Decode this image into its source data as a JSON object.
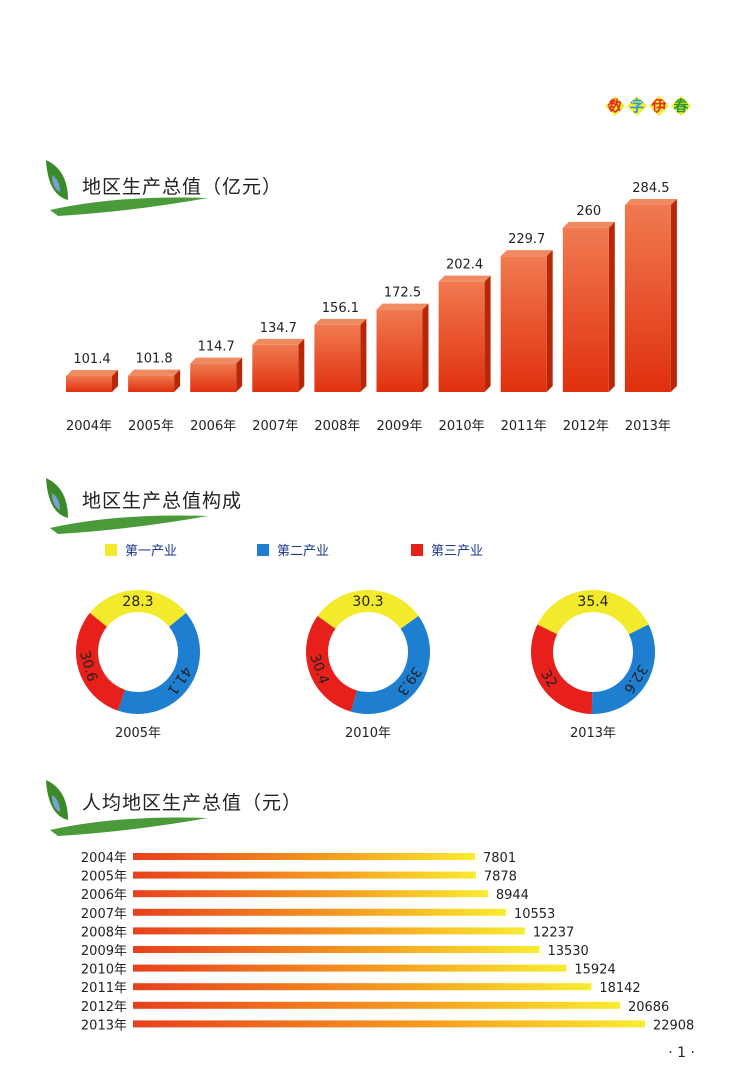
{
  "brand": [
    "数",
    "字",
    "伊",
    "春"
  ],
  "brand_colors": [
    "#e03020",
    "#2a9ad8",
    "#e03020",
    "#2a9a30"
  ],
  "page_number": "· 1 ·",
  "chart_data": [
    {
      "type": "bar",
      "title": "地区生产总值（亿元）",
      "categories": [
        "2004年",
        "2005年",
        "2006年",
        "2007年",
        "2008年",
        "2009年",
        "2010年",
        "2011年",
        "2012年",
        "2013年"
      ],
      "values": [
        101.4,
        101.8,
        114.7,
        134.7,
        156.1,
        172.5,
        202.4,
        229.7,
        260,
        284.5
      ],
      "value_labels": [
        "101.4",
        "101.8",
        "114.7",
        "134.7",
        "156.1",
        "172.5",
        "202.4",
        "229.7",
        "260",
        "284.5"
      ],
      "color": "#e8401c"
    },
    {
      "type": "pie",
      "title": "地区生产总值构成",
      "legend": [
        {
          "name": "第一产业",
          "color": "#f2ea2a"
        },
        {
          "name": "第二产业",
          "color": "#1e7fd0"
        },
        {
          "name": "第三产业",
          "color": "#e8201c"
        }
      ],
      "charts": [
        {
          "label": "2005年",
          "values": [
            28.3,
            41.1,
            30.6
          ],
          "value_labels": [
            "28.3",
            "41.1",
            "30.6"
          ]
        },
        {
          "label": "2010年",
          "values": [
            30.3,
            39.3,
            30.4
          ],
          "value_labels": [
            "30.3",
            "39.3",
            "30.4"
          ]
        },
        {
          "label": "2013年",
          "values": [
            35.4,
            32.6,
            32
          ],
          "value_labels": [
            "35.4",
            "32.6",
            "32"
          ]
        }
      ]
    },
    {
      "type": "bar",
      "orientation": "horizontal",
      "title": "人均地区生产总值（元）",
      "categories": [
        "2004年",
        "2005年",
        "2006年",
        "2007年",
        "2008年",
        "2009年",
        "2010年",
        "2011年",
        "2012年",
        "2013年"
      ],
      "values": [
        7801,
        7878,
        8944,
        10553,
        12237,
        13530,
        15924,
        18142,
        20686,
        22908
      ],
      "value_labels": [
        "7801",
        "7878",
        "8944",
        "10553",
        "12237",
        "13530",
        "15924",
        "18142",
        "20686",
        "22908"
      ]
    }
  ]
}
